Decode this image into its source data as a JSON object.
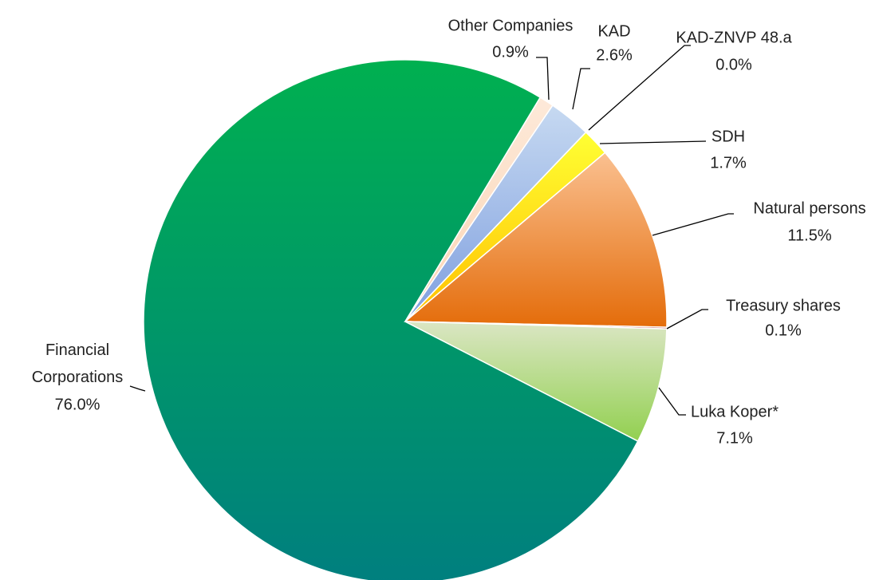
{
  "chart_data": {
    "type": "pie",
    "categories": [
      "Financial Corporations",
      "Other Companies",
      "KAD",
      "KAD-ZNVP 48.a",
      "SDH",
      "Natural persons",
      "Treasury shares",
      "Luka Koper*"
    ],
    "values": [
      76.0,
      0.9,
      2.6,
      0.0,
      1.7,
      11.5,
      0.1,
      7.1
    ],
    "value_labels": [
      "76.0%",
      "0.9%",
      "2.6%",
      "0.0%",
      "1.7%",
      "11.5%",
      "0.1%",
      "7.1%"
    ],
    "colors": [
      [
        "#00b050",
        "#007f7f"
      ],
      [
        "#fde9d9",
        "#fbd5b5"
      ],
      [
        "#c6d9f1",
        "#7f9fdf"
      ],
      [
        "#4f81bd",
        "#4f81bd"
      ],
      [
        "#ffff33",
        "#ffc000"
      ],
      [
        "#fac090",
        "#e46c0a"
      ],
      [
        "#c0504d",
        "#c0504d"
      ],
      [
        "#dbe6c4",
        "#92d050"
      ]
    ]
  }
}
